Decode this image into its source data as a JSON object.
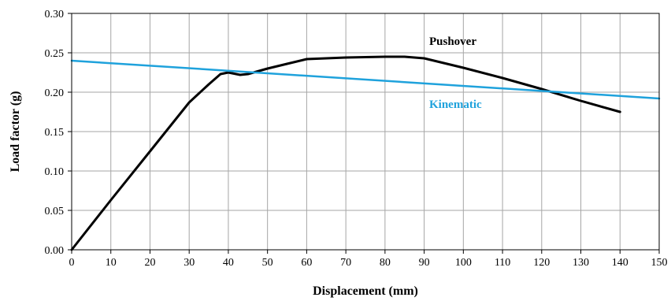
{
  "chart_data": {
    "type": "line",
    "xlabel": "Displacement (mm)",
    "ylabel": "Load factor (g)",
    "xlim": [
      0,
      150
    ],
    "ylim": [
      0,
      0.3
    ],
    "x_ticks": [
      "0",
      "10",
      "20",
      "30",
      "40",
      "50",
      "60",
      "70",
      "80",
      "90",
      "100",
      "110",
      "120",
      "130",
      "140",
      "150"
    ],
    "y_ticks": [
      "0.00",
      "0.05",
      "0.10",
      "0.15",
      "0.20",
      "0.25",
      "0.30"
    ],
    "grid": true,
    "series": [
      {
        "name": "Pushover",
        "color": "#000000",
        "points": [
          [
            0,
            0.0
          ],
          [
            10,
            0.063
          ],
          [
            20,
            0.125
          ],
          [
            30,
            0.187
          ],
          [
            35,
            0.21
          ],
          [
            38,
            0.223
          ],
          [
            40,
            0.225
          ],
          [
            43,
            0.222
          ],
          [
            45,
            0.223
          ],
          [
            50,
            0.23
          ],
          [
            55,
            0.236
          ],
          [
            60,
            0.242
          ],
          [
            70,
            0.244
          ],
          [
            80,
            0.245
          ],
          [
            85,
            0.245
          ],
          [
            90,
            0.243
          ],
          [
            100,
            0.231
          ],
          [
            110,
            0.218
          ],
          [
            120,
            0.204
          ],
          [
            130,
            0.189
          ],
          [
            140,
            0.175
          ]
        ]
      },
      {
        "name": "Kinematic",
        "color": "#1fa2dc",
        "points": [
          [
            0,
            0.24
          ],
          [
            150,
            0.192
          ]
        ]
      }
    ]
  }
}
